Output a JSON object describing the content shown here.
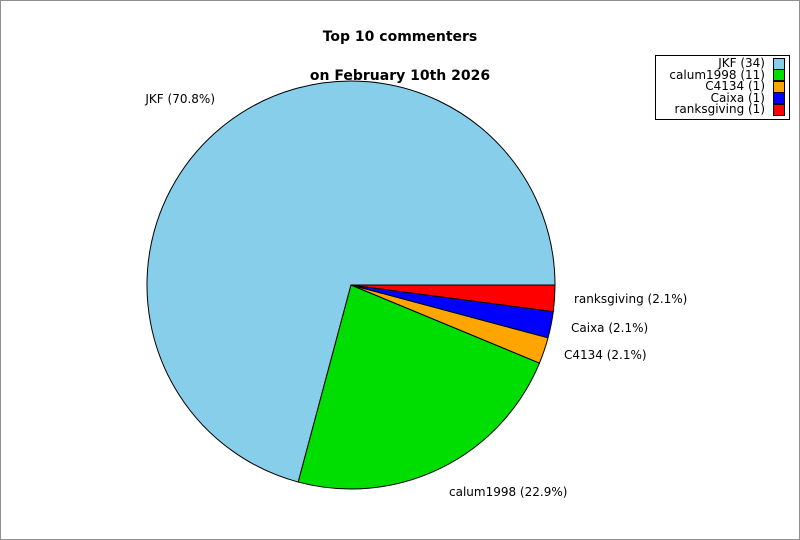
{
  "canvas": {
    "background": "#ffffff",
    "border_color": "#909090"
  },
  "chart_data": {
    "type": "pie",
    "title": "Top 10 commenters\non February 10th 2026",
    "title_lines": [
      "Top 10 commenters",
      "on February 10th 2026"
    ],
    "legend_position": "upper right",
    "start_angle_deg": 0,
    "direction": "counterclockwise",
    "slice_edge_color": "#000000",
    "series": [
      {
        "label": "JKF",
        "count": 34,
        "pct": 70.8,
        "color": "#87CEEB",
        "display_label": "JKF (70.8%)",
        "legend_label": "JKF (34)"
      },
      {
        "label": "calum1998",
        "count": 11,
        "pct": 22.9,
        "color": "#00DD00",
        "display_label": "calum1998 (22.9%)",
        "legend_label": "calum1998 (11)"
      },
      {
        "label": "C4134",
        "count": 1,
        "pct": 2.1,
        "color": "#FFA500",
        "display_label": "C4134 (2.1%)",
        "legend_label": "C4134 (1)"
      },
      {
        "label": "Caixa",
        "count": 1,
        "pct": 2.1,
        "color": "#0000FF",
        "display_label": "Caixa (2.1%)",
        "legend_label": "Caixa (1)"
      },
      {
        "label": "ranksgiving",
        "count": 1,
        "pct": 2.1,
        "color": "#FF0000",
        "display_label": "ranksgiving (2.1%)",
        "legend_label": "ranksgiving (1)"
      }
    ]
  }
}
